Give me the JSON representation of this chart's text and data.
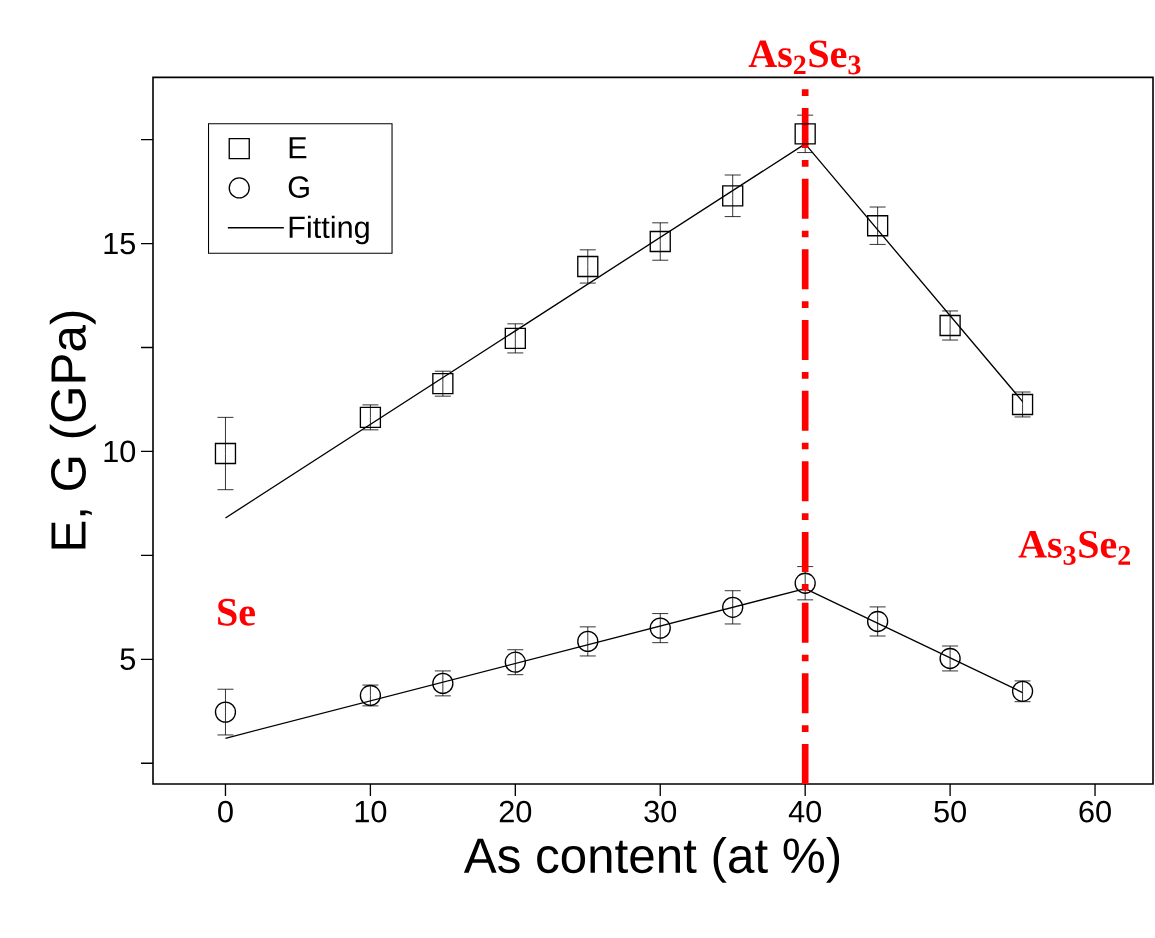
{
  "chart_data": {
    "type": "scatter",
    "xlabel": "As content (at %)",
    "ylabel": "E, G (GPa)",
    "xlim": [
      -5,
      64
    ],
    "ylim": [
      2,
      19
    ],
    "xticks": [
      0,
      10,
      20,
      30,
      40,
      50,
      60
    ],
    "yticks": [
      {
        "value": 2.5,
        "label": null
      },
      5,
      {
        "value": 7.5,
        "label": null
      },
      10,
      {
        "value": 12.5,
        "label": null
      },
      15,
      {
        "value": 17.5,
        "label": null
      }
    ],
    "legend": "top left",
    "series": [
      {
        "name": "E",
        "marker": "square",
        "color": "#000000",
        "x": [
          0,
          10,
          15,
          20,
          25,
          30,
          35,
          40,
          45,
          50,
          55
        ],
        "values": [
          9.95,
          10.82,
          11.63,
          12.72,
          14.45,
          15.05,
          16.15,
          17.64,
          15.43,
          13.03,
          11.13
        ],
        "errors": [
          0.87,
          0.3,
          0.3,
          0.35,
          0.4,
          0.45,
          0.5,
          0.45,
          0.45,
          0.35,
          0.3
        ]
      },
      {
        "name": "G",
        "marker": "circle",
        "color": "#000000",
        "x": [
          0,
          10,
          15,
          20,
          25,
          30,
          35,
          40,
          45,
          50,
          55
        ],
        "values": [
          3.73,
          4.13,
          4.42,
          4.93,
          5.43,
          5.75,
          6.25,
          6.83,
          5.91,
          5.02,
          4.23
        ],
        "errors": [
          0.55,
          0.25,
          0.3,
          0.3,
          0.35,
          0.35,
          0.4,
          0.4,
          0.35,
          0.3,
          0.25
        ]
      },
      {
        "name": "Fitting",
        "type": "line",
        "color": "#000000",
        "x": [
          0,
          40,
          55
        ],
        "values": [
          8.4,
          17.4,
          11.2
        ]
      },
      {
        "type": "line",
        "color": "#000000",
        "x": [
          0,
          40,
          55
        ],
        "values": [
          3.1,
          6.7,
          4.2
        ]
      }
    ],
    "ref_lines": [
      {
        "axis": "x",
        "value": 40,
        "label": "As$_{2}$Se$_{3}$",
        "color": "#ff0000",
        "line_style": "dashdot"
      }
    ],
    "annotations": [
      "Se",
      "As$_{3}$Se$_{2}$"
    ]
  }
}
